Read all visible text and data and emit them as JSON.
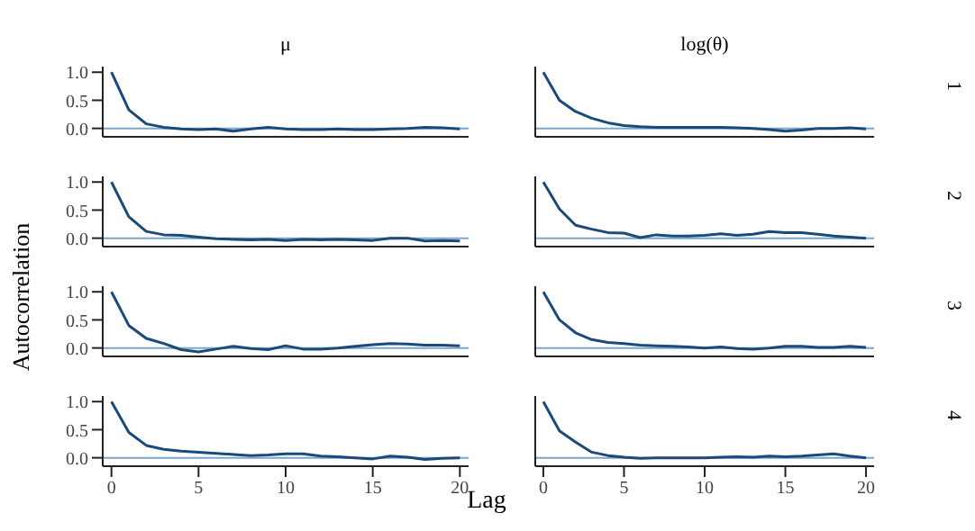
{
  "chart_data": [
    {
      "type": "line",
      "title": "μ",
      "x": [
        0,
        1,
        2,
        3,
        4,
        5,
        6,
        7,
        8,
        9,
        10,
        11,
        12,
        13,
        14,
        15,
        16,
        17,
        18,
        19,
        20
      ],
      "xlim": [
        -0.5,
        20.5
      ],
      "xticks": [
        0,
        5,
        10,
        15,
        20
      ],
      "ylim": [
        -0.15,
        1.1
      ],
      "yticks": [
        {
          "value": 0,
          "label": "0.0"
        },
        {
          "value": 0.5,
          "label": "0.5"
        },
        {
          "value": 1,
          "label": "1.0"
        }
      ],
      "tick_labels": "y",
      "marker": "none",
      "ref_lines": [
        {
          "axis": "y",
          "value": 0,
          "color": "#7ba7cc"
        }
      ],
      "series": [
        {
          "color": "#1b4a7a",
          "values": [
            1.0,
            0.33,
            0.08,
            0.02,
            -0.01,
            -0.02,
            -0.01,
            -0.05,
            -0.01,
            0.02,
            -0.01,
            -0.02,
            -0.02,
            -0.01,
            -0.02,
            -0.02,
            -0.01,
            0.0,
            0.02,
            0.01,
            -0.01
          ]
        }
      ]
    },
    {
      "type": "line",
      "title": "log(θ)",
      "y2label": "1",
      "x": [
        0,
        1,
        2,
        3,
        4,
        5,
        6,
        7,
        8,
        9,
        10,
        11,
        12,
        13,
        14,
        15,
        16,
        17,
        18,
        19,
        20
      ],
      "xlim": [
        -0.5,
        20.5
      ],
      "xticks": [
        0,
        5,
        10,
        15,
        20
      ],
      "ylim": [
        -0.15,
        1.1
      ],
      "tick_labels": false,
      "marker": "none",
      "ref_lines": [
        {
          "axis": "y",
          "value": 0,
          "color": "#7ba7cc"
        }
      ],
      "series": [
        {
          "color": "#1b4a7a",
          "values": [
            1.0,
            0.5,
            0.3,
            0.18,
            0.1,
            0.05,
            0.03,
            0.02,
            0.02,
            0.02,
            0.02,
            0.02,
            0.01,
            0.0,
            -0.02,
            -0.05,
            -0.03,
            0.0,
            0.0,
            0.01,
            -0.01
          ]
        }
      ]
    },
    {
      "type": "line",
      "ylabel": "Autocorrelation",
      "x": [
        0,
        1,
        2,
        3,
        4,
        5,
        6,
        7,
        8,
        9,
        10,
        11,
        12,
        13,
        14,
        15,
        16,
        17,
        18,
        19,
        20
      ],
      "xlim": [
        -0.5,
        20.5
      ],
      "xticks": [
        0,
        5,
        10,
        15,
        20
      ],
      "ylim": [
        -0.15,
        1.1
      ],
      "yticks": [
        {
          "value": 0,
          "label": "0.0"
        },
        {
          "value": 0.5,
          "label": "0.5"
        },
        {
          "value": 1,
          "label": "1.0"
        }
      ],
      "tick_labels": "y",
      "marker": "none",
      "ref_lines": [
        {
          "axis": "y",
          "value": 0,
          "color": "#7ba7cc"
        }
      ],
      "series": [
        {
          "color": "#1b4a7a",
          "values": [
            1.0,
            0.38,
            0.12,
            0.06,
            0.05,
            0.02,
            -0.01,
            -0.02,
            -0.03,
            -0.02,
            -0.04,
            -0.02,
            -0.03,
            -0.02,
            -0.03,
            -0.04,
            0.0,
            0.0,
            -0.05,
            -0.04,
            -0.05
          ]
        }
      ]
    },
    {
      "type": "line",
      "y2label": "2",
      "x": [
        0,
        1,
        2,
        3,
        4,
        5,
        6,
        7,
        8,
        9,
        10,
        11,
        12,
        13,
        14,
        15,
        16,
        17,
        18,
        19,
        20
      ],
      "xlim": [
        -0.5,
        20.5
      ],
      "xticks": [
        0,
        5,
        10,
        15,
        20
      ],
      "ylim": [
        -0.15,
        1.1
      ],
      "tick_labels": false,
      "marker": "none",
      "ref_lines": [
        {
          "axis": "y",
          "value": 0,
          "color": "#7ba7cc"
        }
      ],
      "series": [
        {
          "color": "#1b4a7a",
          "values": [
            1.0,
            0.52,
            0.23,
            0.16,
            0.1,
            0.09,
            0.01,
            0.06,
            0.04,
            0.04,
            0.05,
            0.08,
            0.05,
            0.07,
            0.12,
            0.1,
            0.1,
            0.07,
            0.04,
            0.02,
            0.0
          ]
        }
      ]
    },
    {
      "type": "line",
      "x": [
        0,
        1,
        2,
        3,
        4,
        5,
        6,
        7,
        8,
        9,
        10,
        11,
        12,
        13,
        14,
        15,
        16,
        17,
        18,
        19,
        20
      ],
      "xlim": [
        -0.5,
        20.5
      ],
      "xticks": [
        0,
        5,
        10,
        15,
        20
      ],
      "ylim": [
        -0.15,
        1.1
      ],
      "yticks": [
        {
          "value": 0,
          "label": "0.0"
        },
        {
          "value": 0.5,
          "label": "0.5"
        },
        {
          "value": 1,
          "label": "1.0"
        }
      ],
      "tick_labels": "y",
      "marker": "none",
      "ref_lines": [
        {
          "axis": "y",
          "value": 0,
          "color": "#7ba7cc"
        }
      ],
      "series": [
        {
          "color": "#1b4a7a",
          "values": [
            1.0,
            0.4,
            0.17,
            0.08,
            -0.03,
            -0.07,
            -0.02,
            0.03,
            -0.01,
            -0.03,
            0.04,
            -0.02,
            -0.02,
            0.0,
            0.03,
            0.06,
            0.08,
            0.07,
            0.05,
            0.05,
            0.04
          ]
        }
      ]
    },
    {
      "type": "line",
      "y2label": "3",
      "x": [
        0,
        1,
        2,
        3,
        4,
        5,
        6,
        7,
        8,
        9,
        10,
        11,
        12,
        13,
        14,
        15,
        16,
        17,
        18,
        19,
        20
      ],
      "xlim": [
        -0.5,
        20.5
      ],
      "xticks": [
        0,
        5,
        10,
        15,
        20
      ],
      "ylim": [
        -0.15,
        1.1
      ],
      "tick_labels": false,
      "marker": "none",
      "ref_lines": [
        {
          "axis": "y",
          "value": 0,
          "color": "#7ba7cc"
        }
      ],
      "series": [
        {
          "color": "#1b4a7a",
          "values": [
            1.0,
            0.5,
            0.27,
            0.15,
            0.1,
            0.08,
            0.05,
            0.04,
            0.03,
            0.02,
            0.0,
            0.02,
            -0.01,
            -0.02,
            0.0,
            0.03,
            0.03,
            0.01,
            0.01,
            0.03,
            0.01
          ]
        }
      ]
    },
    {
      "type": "line",
      "x": [
        0,
        1,
        2,
        3,
        4,
        5,
        6,
        7,
        8,
        9,
        10,
        11,
        12,
        13,
        14,
        15,
        16,
        17,
        18,
        19,
        20
      ],
      "xlim": [
        -0.5,
        20.5
      ],
      "xticks": [
        0,
        5,
        10,
        15,
        20
      ],
      "ylim": [
        -0.15,
        1.1
      ],
      "yticks": [
        {
          "value": 0,
          "label": "0.0"
        },
        {
          "value": 0.5,
          "label": "0.5"
        },
        {
          "value": 1,
          "label": "1.0"
        }
      ],
      "marker": "none",
      "ref_lines": [
        {
          "axis": "y",
          "value": 0,
          "color": "#7ba7cc"
        }
      ],
      "series": [
        {
          "color": "#1b4a7a",
          "values": [
            1.0,
            0.45,
            0.22,
            0.15,
            0.12,
            0.1,
            0.08,
            0.06,
            0.04,
            0.05,
            0.07,
            0.07,
            0.03,
            0.02,
            0.0,
            -0.02,
            0.03,
            0.01,
            -0.03,
            -0.01,
            0.0
          ]
        }
      ]
    },
    {
      "type": "line",
      "xlabel": "Lag",
      "y2label": "4",
      "x": [
        0,
        1,
        2,
        3,
        4,
        5,
        6,
        7,
        8,
        9,
        10,
        11,
        12,
        13,
        14,
        15,
        16,
        17,
        18,
        19,
        20
      ],
      "xlim": [
        -0.5,
        20.5
      ],
      "xticks": [
        0,
        5,
        10,
        15,
        20
      ],
      "ylim": [
        -0.15,
        1.1
      ],
      "tick_labels": "x",
      "marker": "none",
      "ref_lines": [
        {
          "axis": "y",
          "value": 0,
          "color": "#7ba7cc"
        }
      ],
      "series": [
        {
          "color": "#1b4a7a",
          "values": [
            1.0,
            0.48,
            0.28,
            0.1,
            0.04,
            0.01,
            -0.01,
            0.0,
            0.0,
            0.0,
            0.0,
            0.01,
            0.02,
            0.01,
            0.03,
            0.02,
            0.03,
            0.05,
            0.07,
            0.03,
            0.0
          ]
        }
      ]
    }
  ]
}
